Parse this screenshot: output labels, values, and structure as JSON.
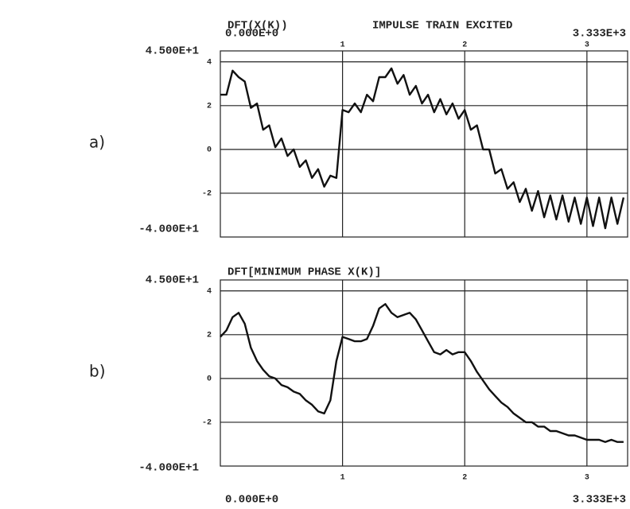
{
  "chart_data": [
    {
      "type": "line",
      "panel_label": "a)",
      "title": "DFT(X(K))",
      "subtitle": "IMPULSE TRAIN EXCITED",
      "x": [
        0,
        50,
        100,
        150,
        200,
        250,
        300,
        350,
        400,
        450,
        500,
        550,
        600,
        650,
        700,
        750,
        800,
        850,
        900,
        950,
        1000,
        1050,
        1100,
        1150,
        1200,
        1250,
        1300,
        1350,
        1400,
        1450,
        1500,
        1550,
        1600,
        1650,
        1700,
        1750,
        1800,
        1850,
        1900,
        1950,
        2000,
        2050,
        2100,
        2150,
        2200,
        2250,
        2300,
        2350,
        2400,
        2450,
        2500,
        2550,
        2600,
        2650,
        2700,
        2750,
        2800,
        2850,
        2900,
        2950,
        3000,
        3050,
        3100,
        3150,
        3200,
        3250,
        3300
      ],
      "values": [
        25,
        25,
        36,
        33,
        31,
        19,
        21,
        9,
        11,
        1,
        5,
        -3,
        0,
        -8,
        -5,
        -13,
        -9,
        -17,
        -12,
        -13,
        18,
        17,
        21,
        17,
        25,
        22,
        33,
        33,
        37,
        30,
        34,
        25,
        29,
        21,
        25,
        17,
        23,
        16,
        21,
        14,
        18,
        9,
        11,
        0,
        0,
        -11,
        -9,
        -18,
        -15,
        -24,
        -18,
        -28,
        -19,
        -31,
        -21,
        -32,
        -21,
        -33,
        -22,
        -34,
        -22,
        -35,
        -22,
        -36,
        -22,
        -34,
        -22
      ],
      "color": "#111111",
      "xlim": [
        0,
        3333
      ],
      "xlim_labels": [
        "0.000E+0",
        "3.333E+3"
      ],
      "ylim": [
        -40,
        45
      ],
      "ylim_labels": [
        "-4.000E+1",
        "4.500E+1"
      ],
      "xticks": [
        {
          "value": 1000,
          "label": "1"
        },
        {
          "value": 2000,
          "label": "2"
        },
        {
          "value": 3000,
          "label": "3"
        }
      ],
      "yticks": [
        {
          "value": 40,
          "label": "4"
        },
        {
          "value": 20,
          "label": "2"
        },
        {
          "value": 0,
          "label": "0"
        },
        {
          "value": -20,
          "label": "-2"
        }
      ],
      "grid": true
    },
    {
      "type": "line",
      "panel_label": "b)",
      "title": "DFT[MINIMUM PHASE X(K)]",
      "x": [
        0,
        50,
        100,
        150,
        200,
        250,
        300,
        350,
        400,
        450,
        500,
        550,
        600,
        650,
        700,
        750,
        800,
        850,
        900,
        950,
        1000,
        1050,
        1100,
        1150,
        1200,
        1250,
        1300,
        1350,
        1400,
        1450,
        1500,
        1550,
        1600,
        1650,
        1700,
        1750,
        1800,
        1850,
        1900,
        1950,
        2000,
        2050,
        2100,
        2150,
        2200,
        2250,
        2300,
        2350,
        2400,
        2450,
        2500,
        2550,
        2600,
        2650,
        2700,
        2750,
        2800,
        2850,
        2900,
        2950,
        3000,
        3050,
        3100,
        3150,
        3200,
        3250,
        3300
      ],
      "values": [
        19,
        22,
        28,
        30,
        25,
        14,
        8,
        4,
        1,
        0,
        -3,
        -4,
        -6,
        -7,
        -10,
        -12,
        -15,
        -16,
        -10,
        8,
        19,
        18,
        17,
        17,
        18,
        24,
        32,
        34,
        30,
        28,
        29,
        30,
        27,
        22,
        17,
        12,
        11,
        13,
        11,
        12,
        12,
        8,
        3,
        -1,
        -5,
        -8,
        -11,
        -13,
        -16,
        -18,
        -20,
        -20,
        -22,
        -22,
        -24,
        -24,
        -25,
        -26,
        -26,
        -27,
        -28,
        -28,
        -28,
        -29,
        -28,
        -29,
        -29
      ],
      "color": "#111111",
      "xlim": [
        0,
        3333
      ],
      "xlim_labels": [
        "0.000E+0",
        "3.333E+3"
      ],
      "ylim": [
        -40,
        45
      ],
      "ylim_labels": [
        "-4.000E+1",
        "4.500E+1"
      ],
      "xticks": [
        {
          "value": 1000,
          "label": "1"
        },
        {
          "value": 2000,
          "label": "2"
        },
        {
          "value": 3000,
          "label": "3"
        }
      ],
      "yticks": [
        {
          "value": 40,
          "label": "4"
        },
        {
          "value": 20,
          "label": "2"
        },
        {
          "value": 0,
          "label": "0"
        },
        {
          "value": -20,
          "label": "-2"
        }
      ],
      "grid": true
    }
  ]
}
